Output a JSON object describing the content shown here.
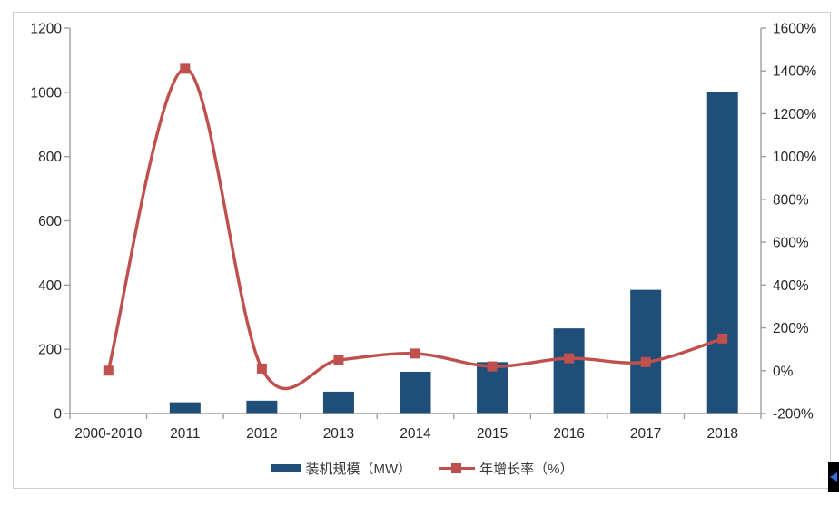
{
  "chart_data": {
    "type": "combo-bar-line",
    "title": "",
    "categories": [
      "2000-2010",
      "2011",
      "2012",
      "2013",
      "2014",
      "2015",
      "2016",
      "2017",
      "2018"
    ],
    "series": [
      {
        "name": "装机规模（MW）",
        "kind": "bar",
        "axis": "left",
        "color": "#1F4E79",
        "values": [
          0,
          35,
          40,
          68,
          130,
          160,
          265,
          385,
          1000
        ]
      },
      {
        "name": "年增长率（%）",
        "kind": "line",
        "axis": "right",
        "color": "#C0504D",
        "marker": "square",
        "values": [
          0,
          1410,
          10,
          50,
          80,
          20,
          58,
          40,
          150
        ]
      }
    ],
    "left_axis": {
      "min": 0,
      "max": 1200,
      "step": 200,
      "tick_labels": [
        "1200",
        "1000",
        "800",
        "600",
        "400",
        "200",
        "0"
      ]
    },
    "right_axis": {
      "min": -200,
      "max": 1600,
      "step": 200,
      "tick_labels": [
        "1600%",
        "1400%",
        "1200%",
        "1000%",
        "800%",
        "600%",
        "400%",
        "200%",
        "0%",
        "-200%"
      ]
    },
    "grid": false,
    "legend_position": "bottom"
  },
  "legend": {
    "bar_label": "装机规模（MW）",
    "line_label": "年增长率（%）"
  },
  "colors": {
    "bar": "#1F4E79",
    "line": "#C0504D",
    "axis_line": "#9e9e9e",
    "tick_text": "#262626",
    "frame_border": "#cfcfcf",
    "artifact_bg": "#000000",
    "artifact_arrow": "#2f6fd8"
  }
}
